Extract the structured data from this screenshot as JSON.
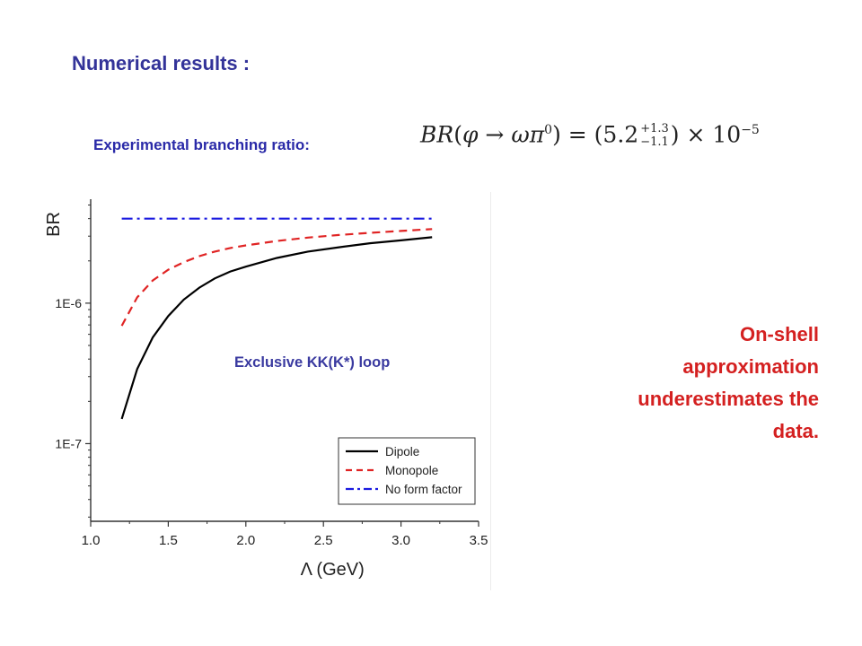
{
  "slide": {
    "title": "Numerical results :",
    "experimental_label": "Experimental branching ratio:",
    "formula": {
      "lhs_symbol": "BR",
      "lhs_args": "φ → ωπ",
      "lhs_superscript": "0",
      "central": "5.2",
      "err_plus": "+1.3",
      "err_minus": "−1.1",
      "times": "× 10",
      "exponent": "−5"
    },
    "annotation": "Exclusive KK(K*) loop",
    "callout_lines": [
      "On-shell",
      "approximation",
      "underestimates the",
      "data."
    ],
    "colors": {
      "title": "#333399",
      "label": "#2a2aa8",
      "callout": "#d42020",
      "annotation": "#3a3aa0"
    }
  },
  "chart_data": {
    "type": "line",
    "xlabel": "Λ (GeV)",
    "ylabel": "BR",
    "x_scale": "linear",
    "y_scale": "log",
    "xlim": [
      1.0,
      3.5
    ],
    "ylim": [
      2.8e-08,
      5.5e-06
    ],
    "x_ticks": [
      1.0,
      1.5,
      2.0,
      2.5,
      3.0,
      3.5
    ],
    "x_tick_labels": [
      "1.0",
      "1.5",
      "2.0",
      "2.5",
      "3.0",
      "3.5"
    ],
    "y_ticks": [
      1e-07,
      1e-06
    ],
    "y_tick_labels": [
      "1E-7",
      "1E-6"
    ],
    "legend_position": "bottom-right",
    "grid": false,
    "series": [
      {
        "name": "Dipole",
        "color": "#000000",
        "style": "solid",
        "x": [
          1.2,
          1.3,
          1.4,
          1.5,
          1.6,
          1.7,
          1.8,
          1.9,
          2.0,
          2.2,
          2.4,
          2.6,
          2.8,
          3.0,
          3.2
        ],
        "y": [
          1.5e-07,
          3.4e-07,
          5.7e-07,
          8.1e-07,
          1.06e-06,
          1.29e-06,
          1.5e-06,
          1.68e-06,
          1.82e-06,
          2.1e-06,
          2.33e-06,
          2.5e-06,
          2.67e-06,
          2.8e-06,
          2.95e-06
        ]
      },
      {
        "name": "Monopole",
        "color": "#e02424",
        "style": "dashed",
        "x": [
          1.2,
          1.3,
          1.4,
          1.5,
          1.6,
          1.7,
          1.8,
          1.9,
          2.0,
          2.2,
          2.4,
          2.6,
          2.8,
          3.0,
          3.2
        ],
        "y": [
          6.9e-07,
          1.1e-06,
          1.45e-06,
          1.73e-06,
          1.96e-06,
          2.16e-06,
          2.33e-06,
          2.47e-06,
          2.58e-06,
          2.77e-06,
          2.93e-06,
          3.06e-06,
          3.17e-06,
          3.27e-06,
          3.37e-06
        ]
      },
      {
        "name": "No form factor",
        "color": "#1a1ae0",
        "style": "dashdot",
        "x": [
          1.2,
          3.2
        ],
        "y": [
          4e-06,
          4e-06
        ]
      }
    ]
  }
}
